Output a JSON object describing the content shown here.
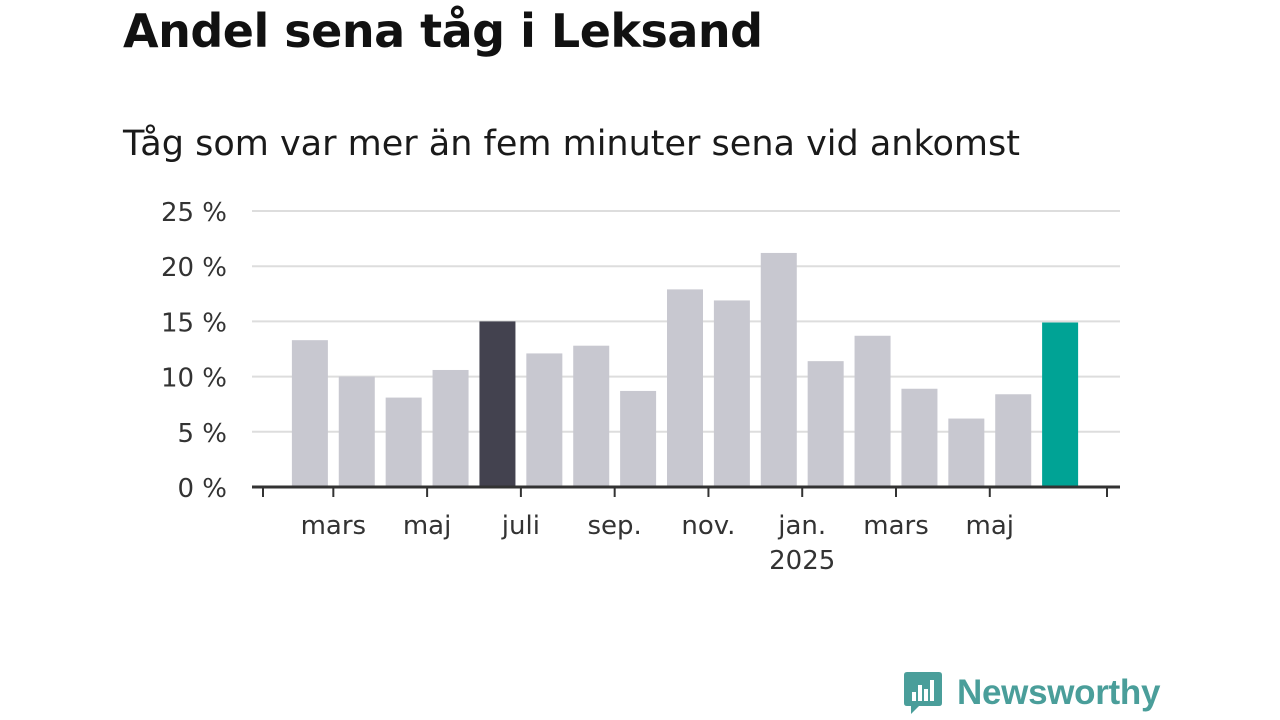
{
  "title": "Andel sena tåg i Leksand",
  "subtitle": "Tåg som var mer än fem minuter sena vid ankomst",
  "brand": {
    "name": "Newsworthy",
    "logo_icon": "newsworthy-chart-bubble-icon",
    "color": "#4a9e9a"
  },
  "colors": {
    "default_bar": "#c8c8d0",
    "highlight_dark": "#43424f",
    "highlight_latest": "#00a395",
    "grid": "#dddddd",
    "axis": "#333333"
  },
  "chart_data": {
    "type": "bar",
    "title": "Andel sena tåg i Leksand",
    "subtitle": "Tåg som var mer än fem minuter sena vid ankomst",
    "xlabel": "",
    "ylabel": "",
    "ylim": [
      0,
      25
    ],
    "y_ticks": [
      0,
      5,
      10,
      15,
      20,
      25
    ],
    "y_tick_labels": [
      "0 %",
      "5 %",
      "10 %",
      "15 %",
      "20 %",
      "25 %"
    ],
    "grid": true,
    "categories": [
      "2024-02",
      "2024-03",
      "2024-04",
      "2024-05",
      "2024-06",
      "2024-07",
      "2024-08",
      "2024-09",
      "2024-10",
      "2024-11",
      "2024-12",
      "2025-01",
      "2025-02",
      "2025-03",
      "2025-04",
      "2025-05",
      "2025-06"
    ],
    "values": [
      13.3,
      10.0,
      8.1,
      10.6,
      15.0,
      12.1,
      12.8,
      8.7,
      17.9,
      16.9,
      21.2,
      11.4,
      13.7,
      8.9,
      6.2,
      8.4,
      14.9
    ],
    "highlight": [
      "none",
      "none",
      "none",
      "none",
      "dark",
      "none",
      "none",
      "none",
      "none",
      "none",
      "none",
      "none",
      "none",
      "none",
      "none",
      "none",
      "latest"
    ],
    "x_tick_labels": [
      {
        "label": "mars",
        "category": "2024-03"
      },
      {
        "label": "maj",
        "category": "2024-05"
      },
      {
        "label": "juli",
        "category": "2024-07"
      },
      {
        "label": "sep.",
        "category": "2024-09"
      },
      {
        "label": "nov.",
        "category": "2024-11"
      },
      {
        "label": "jan.",
        "category": "2025-01",
        "sublabel": "2025"
      },
      {
        "label": "mars",
        "category": "2025-03"
      },
      {
        "label": "maj",
        "category": "2025-05"
      }
    ]
  }
}
